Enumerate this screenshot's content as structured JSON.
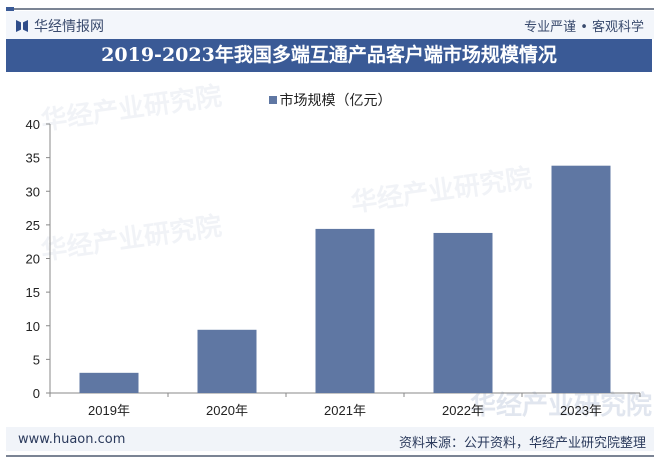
{
  "header": {
    "logo_text": "华经情报网",
    "slogan": "专业严谨 • 客观科学"
  },
  "title": "2019-2023年我国多端互通产品客户端市场规模情况",
  "watermark": "华经产业研究院",
  "footer": {
    "url": "www.huaon.com",
    "source": "资料来源：公开资料，华经产业研究院整理"
  },
  "colors": {
    "banner": "#3a5a96",
    "bar": "#5f77a3"
  },
  "chart_data": {
    "type": "bar",
    "title": "2019-2023年我国多端互通产品客户端市场规模情况",
    "categories": [
      "2019年",
      "2020年",
      "2021年",
      "2022年",
      "2023年"
    ],
    "series": [
      {
        "name": "市场规模（亿元）",
        "values": [
          3.0,
          9.4,
          24.4,
          23.8,
          33.8
        ]
      }
    ],
    "ylim": [
      0,
      40
    ],
    "yticks": [
      0,
      5,
      10,
      15,
      20,
      25,
      30,
      35,
      40
    ],
    "grid": false,
    "legend": "top-center"
  }
}
